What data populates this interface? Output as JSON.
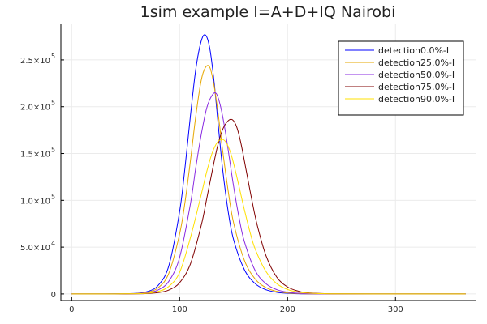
{
  "chart_data": {
    "type": "line",
    "title": "1sim example I=A+D+IQ Nairobi",
    "xlabel": "",
    "ylabel": "",
    "xlim": [
      -10,
      375
    ],
    "ylim": [
      -7000,
      288000
    ],
    "x_ticks": [
      {
        "value": 0,
        "label": "0"
      },
      {
        "value": 100,
        "label": "100"
      },
      {
        "value": 200,
        "label": "200"
      },
      {
        "value": 300,
        "label": "300"
      }
    ],
    "y_ticks": [
      {
        "value": 0,
        "mantissa": "0",
        "exp": ""
      },
      {
        "value": 50000,
        "mantissa": "5.0×10",
        "exp": "4"
      },
      {
        "value": 100000,
        "mantissa": "1.0×10",
        "exp": "5"
      },
      {
        "value": 150000,
        "mantissa": "1.5×10",
        "exp": "5"
      },
      {
        "value": 200000,
        "mantissa": "2.0×10",
        "exp": "5"
      },
      {
        "value": 250000,
        "mantissa": "2.5×10",
        "exp": "5"
      }
    ],
    "grid": true,
    "legend_position": "top-right",
    "series": [
      {
        "name": "detection0.0%-I",
        "color": "#0000ff",
        "x": [
          0,
          20,
          40,
          60,
          70,
          80,
          90,
          100,
          105,
          110,
          115,
          120,
          124,
          128,
          132,
          136,
          140,
          145,
          150,
          160,
          170,
          180,
          190,
          200,
          210,
          220,
          240,
          280,
          365
        ],
        "values": [
          0,
          0,
          100,
          700,
          2500,
          9000,
          30000,
          88000,
          135000,
          190000,
          240000,
          270000,
          276500,
          262000,
          226000,
          178000,
          132000,
          88000,
          58000,
          26000,
          11000,
          4500,
          1800,
          700,
          250,
          80,
          10,
          0,
          0
        ]
      },
      {
        "name": "detection25.0%-I",
        "color": "#e6a700",
        "x": [
          0,
          20,
          40,
          60,
          70,
          80,
          90,
          100,
          105,
          110,
          115,
          120,
          124,
          128,
          132,
          136,
          140,
          145,
          150,
          160,
          170,
          180,
          190,
          200,
          210,
          220,
          240,
          280,
          365
        ],
        "values": [
          0,
          0,
          80,
          500,
          1800,
          6500,
          22000,
          64000,
          98000,
          142000,
          190000,
          228000,
          242000,
          242000,
          222000,
          190000,
          152000,
          110000,
          76000,
          36000,
          16000,
          6800,
          2800,
          1100,
          420,
          150,
          20,
          0,
          0
        ]
      },
      {
        "name": "detection50.0%-I",
        "color": "#8a2be2",
        "x": [
          0,
          20,
          40,
          60,
          70,
          80,
          90,
          100,
          110,
          115,
          120,
          125,
          130,
          134,
          138,
          142,
          146,
          150,
          155,
          160,
          170,
          180,
          190,
          200,
          210,
          220,
          240,
          280,
          365
        ],
        "values": [
          0,
          0,
          60,
          400,
          1200,
          4200,
          13500,
          39000,
          96000,
          135000,
          170000,
          198000,
          212000,
          214000,
          200000,
          176000,
          146000,
          115000,
          82000,
          56000,
          25000,
          11000,
          4600,
          1900,
          750,
          280,
          40,
          0,
          0
        ]
      },
      {
        "name": "detection75.0%-I",
        "color": "#800000",
        "x": [
          0,
          20,
          40,
          60,
          70,
          80,
          90,
          100,
          110,
          120,
          125,
          130,
          135,
          140,
          145,
          149,
          153,
          157,
          162,
          167,
          172,
          180,
          190,
          200,
          210,
          220,
          240,
          280,
          365
        ],
        "values": [
          0,
          0,
          30,
          150,
          450,
          1400,
          4200,
          12000,
          32000,
          73000,
          101000,
          130000,
          157000,
          176000,
          185000,
          186000,
          178000,
          160000,
          130000,
          100000,
          73000,
          41000,
          18000,
          7500,
          3000,
          1100,
          150,
          0,
          0
        ]
      },
      {
        "name": "detection90.0%-I",
        "color": "#ffe000",
        "x": [
          0,
          20,
          40,
          60,
          70,
          80,
          90,
          100,
          110,
          120,
          125,
          130,
          135,
          140,
          144,
          148,
          152,
          156,
          160,
          165,
          170,
          180,
          190,
          200,
          210,
          220,
          240,
          280,
          365
        ],
        "values": [
          0,
          0,
          50,
          250,
          800,
          2600,
          8000,
          23000,
          60000,
          106000,
          130000,
          150000,
          162000,
          165000,
          160000,
          148000,
          130000,
          110000,
          90000,
          67000,
          48000,
          24000,
          11000,
          4800,
          2000,
          800,
          120,
          0,
          0
        ]
      }
    ]
  }
}
